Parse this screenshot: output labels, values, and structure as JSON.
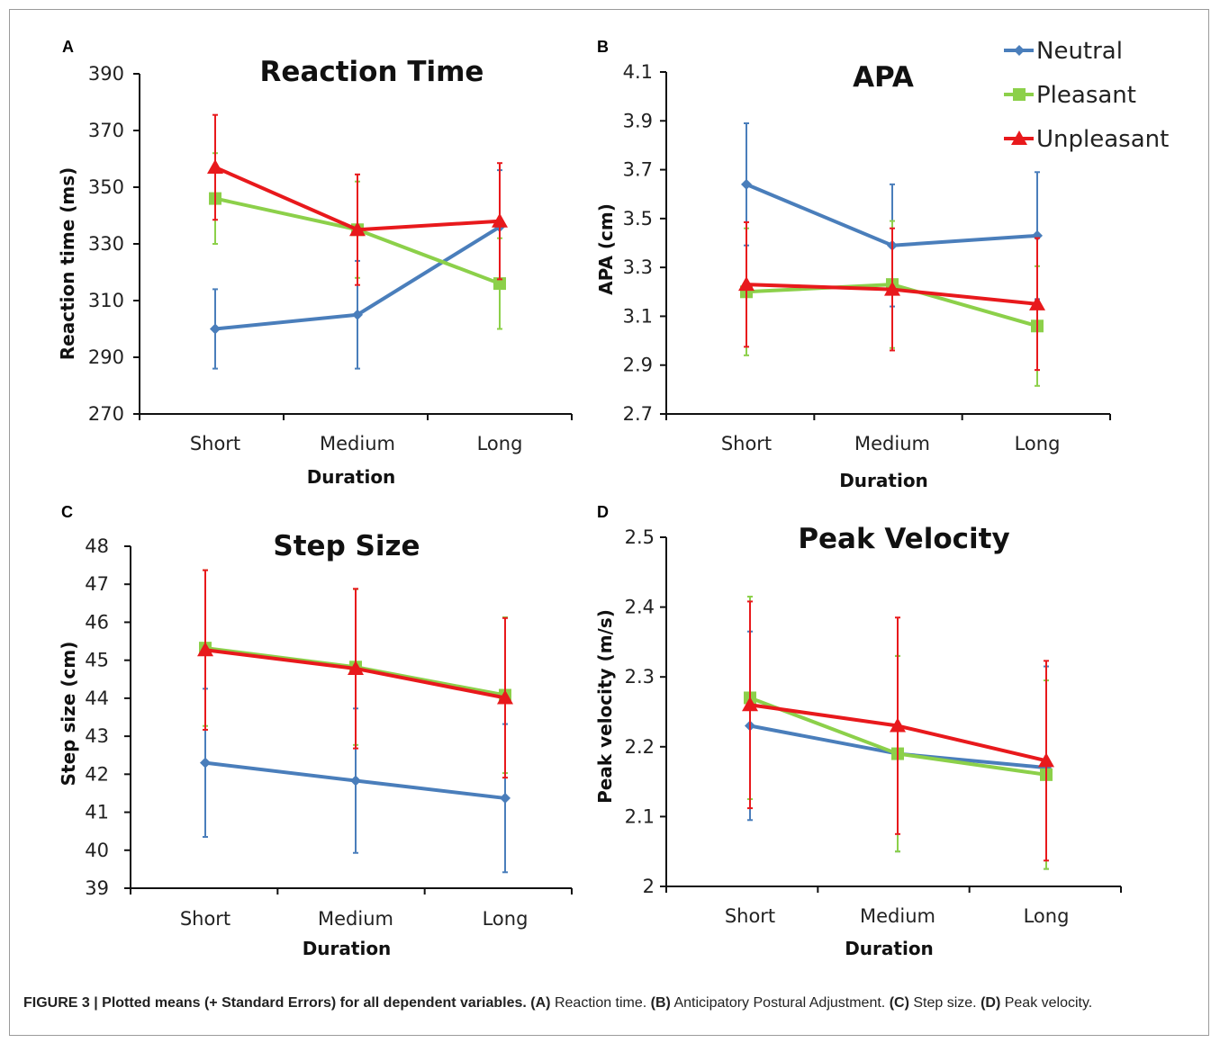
{
  "colors": {
    "Neutral": "#4a7ebb",
    "Pleasant": "#8cd04a",
    "Unpleasant": "#e8191c"
  },
  "legend": [
    "Neutral",
    "Pleasant",
    "Unpleasant"
  ],
  "caption": {
    "figure_label": "FIGURE 3 | Plotted means (+ Standard Errors) for all dependent variables.",
    "a_label": "(A)",
    "a_text": " Reaction time. ",
    "b_label": "(B)",
    "b_text": " Anticipatory Postural Adjustment. ",
    "c_label": "(C)",
    "c_text": " Step size. ",
    "d_label": "(D)",
    "d_text": " Peak velocity."
  },
  "chart_data": [
    {
      "letter": "A",
      "type": "line",
      "title": "Reaction Time",
      "xlabel": "Duration",
      "ylabel": "Reaction time (ms)",
      "categories": [
        "Short",
        "Medium",
        "Long"
      ],
      "ylim": [
        270,
        390
      ],
      "yticks": [
        270,
        290,
        310,
        330,
        350,
        370,
        390
      ],
      "series": [
        {
          "name": "Neutral",
          "marker": "diamond",
          "values": [
            300,
            305,
            336
          ],
          "err": [
            14,
            19,
            20
          ]
        },
        {
          "name": "Pleasant",
          "marker": "square",
          "values": [
            346,
            335,
            316
          ],
          "err": [
            16,
            17,
            16
          ]
        },
        {
          "name": "Unpleasant",
          "marker": "triangle",
          "values": [
            357,
            335,
            338
          ],
          "err": [
            18.5,
            19.5,
            20.5
          ]
        }
      ]
    },
    {
      "letter": "B",
      "type": "line",
      "title": "APA",
      "xlabel": "Duration",
      "ylabel": "APA (cm)",
      "categories": [
        "Short",
        "Medium",
        "Long"
      ],
      "ylim": [
        2.7,
        4.1
      ],
      "yticks": [
        2.7,
        2.9,
        3.1,
        3.3,
        3.5,
        3.7,
        3.9,
        4.1
      ],
      "series": [
        {
          "name": "Neutral",
          "marker": "diamond",
          "values": [
            3.64,
            3.39,
            3.43
          ],
          "err": [
            0.25,
            0.25,
            0.26
          ]
        },
        {
          "name": "Pleasant",
          "marker": "square",
          "values": [
            3.2,
            3.23,
            3.06
          ],
          "err": [
            0.26,
            0.26,
            0.245
          ]
        },
        {
          "name": "Unpleasant",
          "marker": "triangle",
          "values": [
            3.23,
            3.21,
            3.15
          ],
          "err": [
            0.255,
            0.25,
            0.27
          ]
        }
      ]
    },
    {
      "letter": "C",
      "type": "line",
      "title": "Step Size",
      "xlabel": "Duration",
      "ylabel": "Step size (cm)",
      "categories": [
        "Short",
        "Medium",
        "Long"
      ],
      "ylim": [
        39,
        48
      ],
      "yticks": [
        39,
        40,
        41,
        42,
        43,
        44,
        45,
        46,
        47,
        48
      ],
      "series": [
        {
          "name": "Neutral",
          "marker": "diamond",
          "values": [
            42.3,
            41.83,
            41.37
          ],
          "err": [
            1.95,
            1.9,
            1.95
          ]
        },
        {
          "name": "Pleasant",
          "marker": "square",
          "values": [
            45.32,
            44.82,
            44.08
          ],
          "err": [
            2.05,
            2.05,
            2.05
          ]
        },
        {
          "name": "Unpleasant",
          "marker": "triangle",
          "values": [
            45.27,
            44.78,
            44.01
          ],
          "err": [
            2.1,
            2.1,
            2.1
          ]
        }
      ]
    },
    {
      "letter": "D",
      "type": "line",
      "title": "Peak Velocity",
      "xlabel": "Duration",
      "ylabel": "Peak velocity (m/s)",
      "categories": [
        "Short",
        "Medium",
        "Long"
      ],
      "ylim": [
        2,
        2.5
      ],
      "yticks": [
        2,
        2.1,
        2.2,
        2.3,
        2.4,
        2.5
      ],
      "series": [
        {
          "name": "Neutral",
          "marker": "diamond",
          "values": [
            2.23,
            2.19,
            2.17
          ],
          "err": [
            0.135,
            0.14,
            0.145
          ]
        },
        {
          "name": "Pleasant",
          "marker": "square",
          "values": [
            2.27,
            2.19,
            2.16
          ],
          "err": [
            0.145,
            0.14,
            0.135
          ]
        },
        {
          "name": "Unpleasant",
          "marker": "triangle",
          "values": [
            2.26,
            2.23,
            2.18
          ],
          "err": [
            0.148,
            0.155,
            0.143
          ]
        }
      ]
    }
  ]
}
